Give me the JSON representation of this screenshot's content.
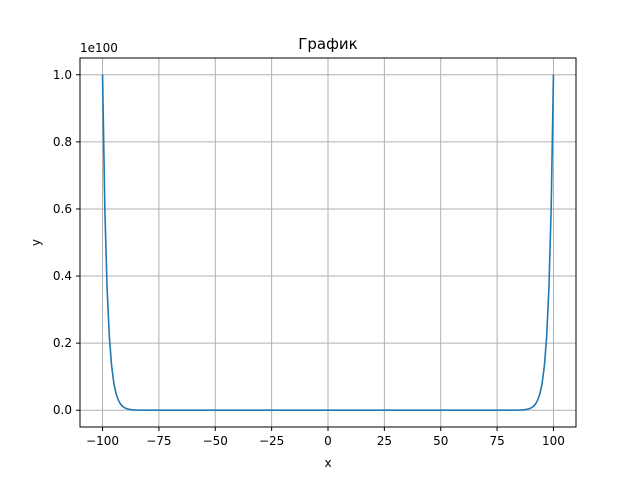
{
  "chart_data": {
    "type": "line",
    "title": "График",
    "xlabel": "x",
    "ylabel": "y",
    "y_offset_label": "1e100",
    "xlim": [
      -110,
      110
    ],
    "ylim": [
      -0.05,
      1.05
    ],
    "x_ticks": [
      -100,
      -75,
      -50,
      -25,
      0,
      25,
      50,
      75,
      100
    ],
    "x_tick_labels": [
      "−100",
      "−75",
      "−50",
      "−25",
      "0",
      "25",
      "50",
      "75",
      "100"
    ],
    "y_ticks": [
      0.0,
      0.2,
      0.4,
      0.6,
      0.8,
      1.0
    ],
    "y_tick_labels": [
      "0.0",
      "0.2",
      "0.4",
      "0.6",
      "0.8",
      "1.0"
    ],
    "grid": true,
    "series": [
      {
        "color": "#1f77b4",
        "x": [
          -100,
          -99,
          -98,
          -97,
          -96,
          -95,
          -94,
          -93,
          -92,
          -91,
          -90,
          -89,
          -88,
          -87,
          -86,
          -85,
          -80,
          -75,
          -50,
          -25,
          0,
          25,
          50,
          75,
          80,
          85,
          86,
          87,
          88,
          89,
          90,
          91,
          92,
          93,
          94,
          95,
          96,
          97,
          98,
          99,
          100
        ],
        "y": [
          1.0,
          0.605,
          0.366,
          0.221,
          0.134,
          0.081,
          0.049,
          0.03,
          0.018,
          0.011,
          0.0066,
          0.004,
          0.0024,
          0.0015,
          0.0009,
          0.0005,
          0.0,
          0.0,
          0.0,
          0.0,
          0.0,
          0.0,
          0.0,
          0.0,
          0.0,
          0.0005,
          0.0009,
          0.0015,
          0.0024,
          0.004,
          0.0066,
          0.011,
          0.018,
          0.03,
          0.049,
          0.081,
          0.134,
          0.221,
          0.366,
          0.605,
          1.0
        ]
      }
    ]
  }
}
